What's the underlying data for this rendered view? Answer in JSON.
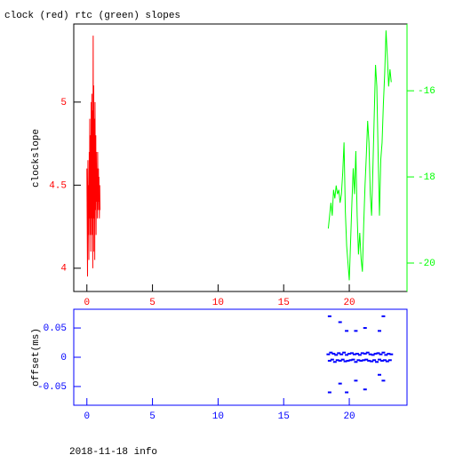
{
  "chart_data": [
    {
      "type": "line",
      "title": "clock (red) rtc (green) slopes",
      "ylabel": "clockslope",
      "axis_color": "#ff0000",
      "xlim": [
        -1,
        24.4
      ],
      "xticks": [
        0,
        5,
        10,
        15,
        20
      ],
      "ylim": [
        3.86,
        5.47
      ],
      "yticks": [
        4,
        4.5,
        5
      ],
      "y2lim": [
        -20.66,
        -14.45
      ],
      "y2ticks": [
        -20,
        -18,
        -16
      ],
      "series": [
        {
          "color": "#ff0000",
          "x": [
            0.0,
            0.05,
            0.08,
            0.1,
            0.12,
            0.15,
            0.18,
            0.2,
            0.22,
            0.25,
            0.28,
            0.3,
            0.33,
            0.35,
            0.38,
            0.4,
            0.42,
            0.45,
            0.48,
            0.5,
            0.52,
            0.55,
            0.58,
            0.6,
            0.62,
            0.65,
            0.68,
            0.7,
            0.72,
            0.75,
            0.78,
            0.8,
            0.82,
            0.85,
            0.88,
            0.9,
            0.92,
            0.95,
            0.98,
            1.0
          ],
          "values": [
            4.6,
            3.95,
            4.65,
            4.2,
            4.5,
            4.05,
            4.7,
            4.3,
            4.9,
            4.2,
            4.8,
            4.1,
            5.0,
            4.3,
            5.05,
            4.2,
            4.95,
            4.0,
            5.4,
            4.1,
            5.1,
            4.3,
            4.9,
            4.05,
            5.0,
            4.35,
            4.8,
            4.2,
            4.7,
            4.4,
            4.6,
            4.3,
            4.7,
            4.35,
            4.6,
            4.4,
            4.55,
            4.3,
            4.5,
            4.35
          ]
        },
        {
          "color": "#00ff00",
          "axis": "y2",
          "x": [
            18.4,
            18.5,
            18.6,
            18.7,
            18.8,
            18.9,
            19.0,
            19.1,
            19.2,
            19.3,
            19.4,
            19.5,
            19.6,
            19.7,
            19.8,
            19.9,
            20.0,
            20.1,
            20.2,
            20.3,
            20.4,
            20.5,
            20.6,
            20.7,
            20.8,
            20.9,
            21.0,
            21.1,
            21.2,
            21.3,
            21.4,
            21.5,
            21.6,
            21.7,
            21.8,
            21.9,
            22.0,
            22.1,
            22.2,
            22.3,
            22.4,
            22.5,
            22.6,
            22.7,
            22.8,
            22.9,
            23.0,
            23.1,
            23.2
          ],
          "values": [
            -19.2,
            -18.9,
            -18.6,
            -18.9,
            -18.3,
            -18.5,
            -18.2,
            -18.4,
            -18.3,
            -18.6,
            -18.4,
            -17.9,
            -17.2,
            -18.8,
            -19.6,
            -20.0,
            -20.4,
            -19.5,
            -18.6,
            -17.8,
            -18.4,
            -17.4,
            -18.9,
            -19.8,
            -19.3,
            -19.9,
            -20.2,
            -19.1,
            -18.2,
            -17.5,
            -16.7,
            -17.2,
            -18.4,
            -18.9,
            -17.8,
            -16.6,
            -15.4,
            -15.9,
            -17.5,
            -18.9,
            -17.6,
            -17.2,
            -16.3,
            -15.6,
            -14.6,
            -15.2,
            -15.9,
            -15.5,
            -15.8
          ]
        }
      ]
    },
    {
      "type": "scatter",
      "ylabel": "offset(ms)",
      "axis_color": "#0000ff",
      "xlim": [
        -1,
        24.4
      ],
      "xticks": [
        0,
        5,
        10,
        15,
        20
      ],
      "ylim": [
        -0.082,
        0.082
      ],
      "yticks": [
        -0.05,
        0,
        0.05
      ],
      "series": [
        {
          "color": "#0000ff",
          "x": [
            18.4,
            18.5,
            18.6,
            18.7,
            18.8,
            18.9,
            19.0,
            19.1,
            19.2,
            19.3,
            19.4,
            19.5,
            19.6,
            19.7,
            19.8,
            19.9,
            20.0,
            20.1,
            20.2,
            20.3,
            20.4,
            20.5,
            20.6,
            20.7,
            20.8,
            20.9,
            21.0,
            21.1,
            21.2,
            21.3,
            21.4,
            21.5,
            21.6,
            21.7,
            21.8,
            21.9,
            22.0,
            22.1,
            22.2,
            22.3,
            22.4,
            22.5,
            22.6,
            22.7,
            22.8,
            22.9,
            23.0,
            23.1,
            23.2,
            18.5,
            18.5,
            19.3,
            19.3,
            19.8,
            19.8,
            20.5,
            20.5,
            21.2,
            21.2,
            22.3,
            22.3,
            22.6,
            22.6
          ],
          "values": [
            0.005,
            -0.006,
            0.008,
            -0.004,
            0.006,
            -0.008,
            0.004,
            -0.005,
            0.007,
            -0.006,
            0.005,
            -0.004,
            0.008,
            -0.007,
            0.004,
            -0.006,
            0.006,
            -0.005,
            0.007,
            -0.004,
            0.005,
            -0.008,
            0.006,
            -0.005,
            0.004,
            -0.006,
            0.007,
            -0.005,
            0.006,
            -0.004,
            0.008,
            -0.006,
            0.005,
            -0.007,
            0.004,
            -0.005,
            0.006,
            -0.008,
            0.007,
            -0.004,
            0.005,
            -0.006,
            0.008,
            -0.005,
            0.004,
            -0.007,
            0.006,
            -0.005,
            0.005,
            0.07,
            -0.06,
            0.06,
            -0.045,
            0.045,
            -0.06,
            0.045,
            -0.04,
            0.05,
            -0.055,
            0.045,
            -0.03,
            0.07,
            -0.04
          ]
        }
      ]
    }
  ],
  "footer": "2018-11-18 info"
}
